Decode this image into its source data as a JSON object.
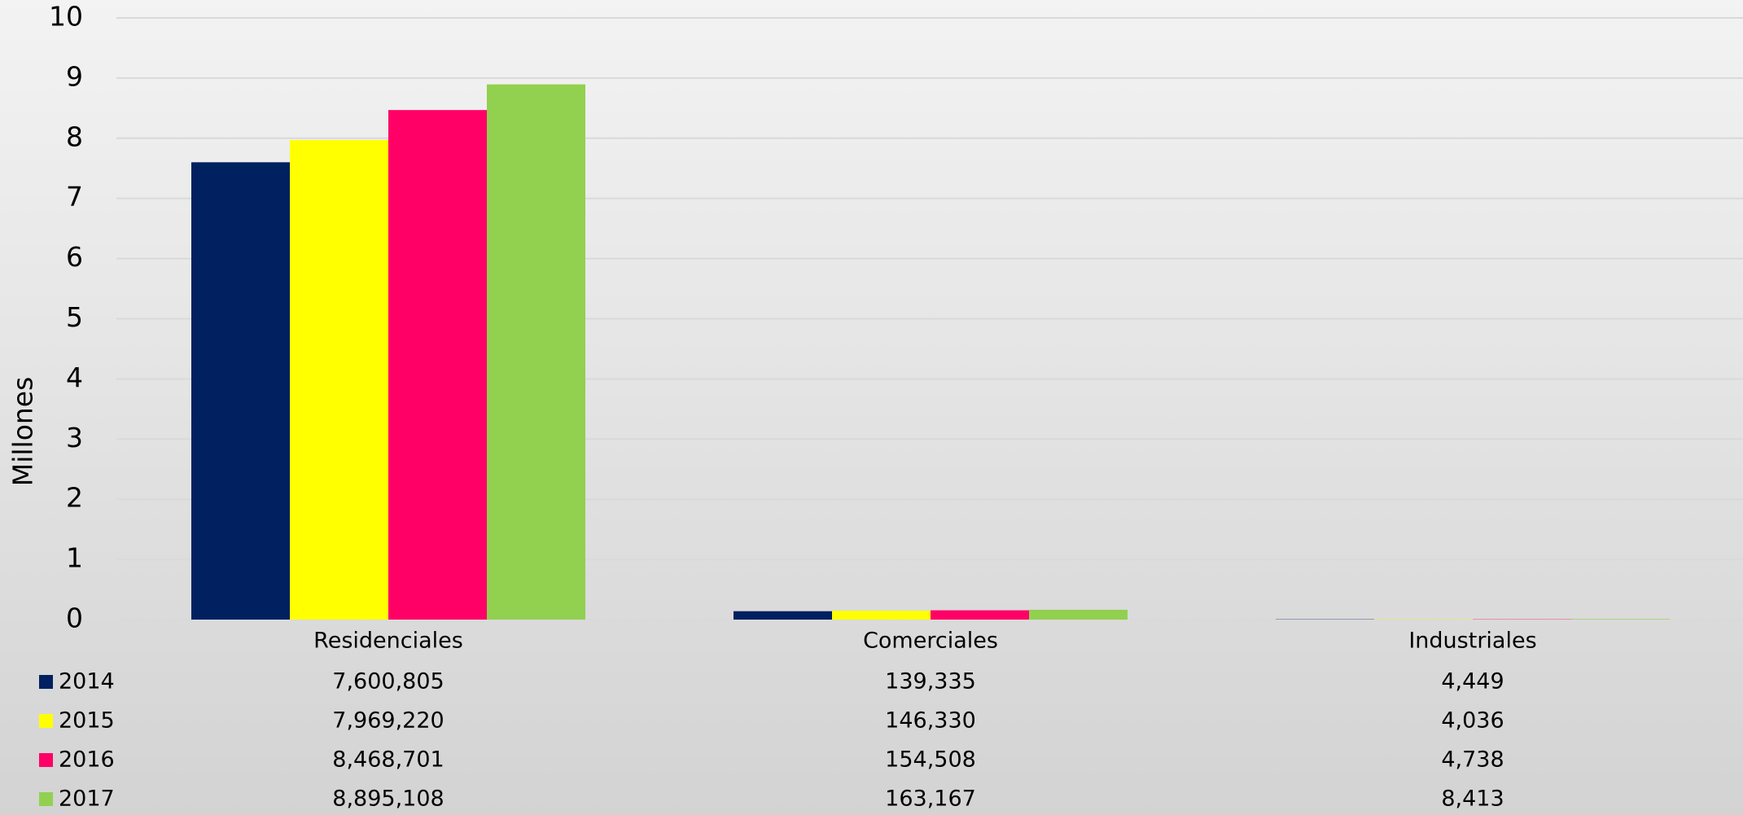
{
  "chart_data": {
    "type": "bar",
    "y_label": "Millones",
    "categories": [
      "Residenciales",
      "Comerciales",
      "Industriales"
    ],
    "series": [
      {
        "name": "2014",
        "color": "#002060",
        "values": [
          7600805,
          139335,
          4449
        ],
        "value_labels": [
          "7,600,805",
          "139,335",
          "4,449"
        ]
      },
      {
        "name": "2015",
        "color": "#ffff00",
        "values": [
          7969220,
          146330,
          4036
        ],
        "value_labels": [
          "7,969,220",
          "146,330",
          "4,036"
        ]
      },
      {
        "name": "2016",
        "color": "#ff0066",
        "values": [
          8468701,
          154508,
          4738
        ],
        "value_labels": [
          "8,468,701",
          "154,508",
          "4,738"
        ]
      },
      {
        "name": "2017",
        "color": "#92d050",
        "values": [
          8895108,
          163167,
          8413
        ],
        "value_labels": [
          "8,895,108",
          "163,167",
          "8,413"
        ]
      }
    ],
    "ylim": [
      0,
      10000000
    ],
    "yticks": [
      0,
      {
        "value": 1000000,
        "label": "1"
      },
      {
        "value": 2000000,
        "label": "2"
      },
      {
        "value": 3000000,
        "label": "3"
      },
      {
        "value": 4000000,
        "label": "4"
      },
      {
        "value": 5000000,
        "label": "5"
      },
      {
        "value": 6000000,
        "label": "6"
      },
      {
        "value": 7000000,
        "label": "7"
      },
      {
        "value": 8000000,
        "label": "8"
      },
      {
        "value": 9000000,
        "label": "9"
      },
      {
        "value": 10000000,
        "label": "10"
      }
    ],
    "grid": true
  }
}
